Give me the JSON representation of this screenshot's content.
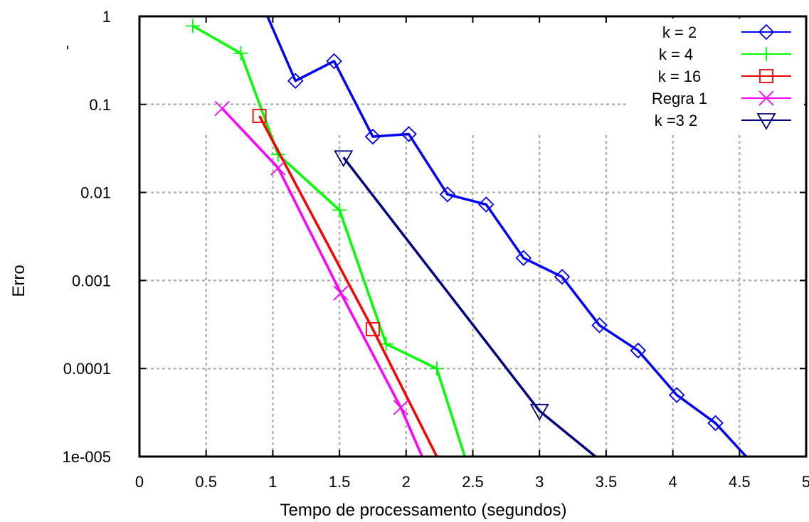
{
  "chart_data": {
    "type": "line",
    "title": "",
    "xlabel": "Tempo de processamento (segundos)",
    "ylabel": "Erro",
    "xlim": [
      0,
      5
    ],
    "ylim": [
      1e-05,
      1
    ],
    "yscale": "log",
    "x_ticks": [
      "0",
      "0.5",
      "1",
      "1.5",
      "2",
      "2.5",
      "3",
      "3.5",
      "4",
      "4.5",
      "5"
    ],
    "y_ticks": [
      "1",
      "0.1",
      "0.01",
      "0.001",
      "0.0001",
      "1e-005"
    ],
    "grid": true,
    "legend_position": "top-right",
    "stray_mark": "'",
    "series": [
      {
        "name": "k = 2",
        "color": "#0000ff",
        "marker": "diamond",
        "x": [
          0.96,
          1.17,
          1.46,
          1.75,
          2.02,
          2.31,
          2.6,
          2.88,
          3.17,
          3.45,
          3.74,
          4.03,
          4.32,
          4.55
        ],
        "y": [
          1.0,
          0.185,
          0.31,
          0.043,
          0.046,
          0.0095,
          0.0073,
          0.0018,
          0.0011,
          0.00031,
          0.00016,
          5e-05,
          2.4e-05,
          1e-05
        ]
      },
      {
        "name": "k = 4",
        "color": "#00ff00",
        "marker": "plus",
        "x": [
          0.4,
          0.76,
          1.04,
          1.5,
          1.85,
          2.23,
          2.44
        ],
        "y": [
          0.78,
          0.38,
          0.027,
          0.0063,
          0.00019,
          0.0001,
          1e-05
        ]
      },
      {
        "name": "k = 16",
        "color": "#ff0000",
        "marker": "square",
        "x": [
          0.9,
          1.75,
          2.23
        ],
        "y": [
          0.074,
          0.00028,
          1e-05
        ]
      },
      {
        "name": "Regra 1",
        "color": "#ff00ff",
        "marker": "cross",
        "x": [
          0.62,
          1.04,
          1.51,
          1.96,
          2.12
        ],
        "y": [
          0.09,
          0.019,
          0.00072,
          3.6e-05,
          1e-05
        ]
      },
      {
        "name": "k =3 2",
        "color": "#000080",
        "marker": "triangle-down",
        "x": [
          1.53,
          3.0,
          3.42
        ],
        "y": [
          0.025,
          3.3e-05,
          1e-05
        ]
      }
    ]
  }
}
